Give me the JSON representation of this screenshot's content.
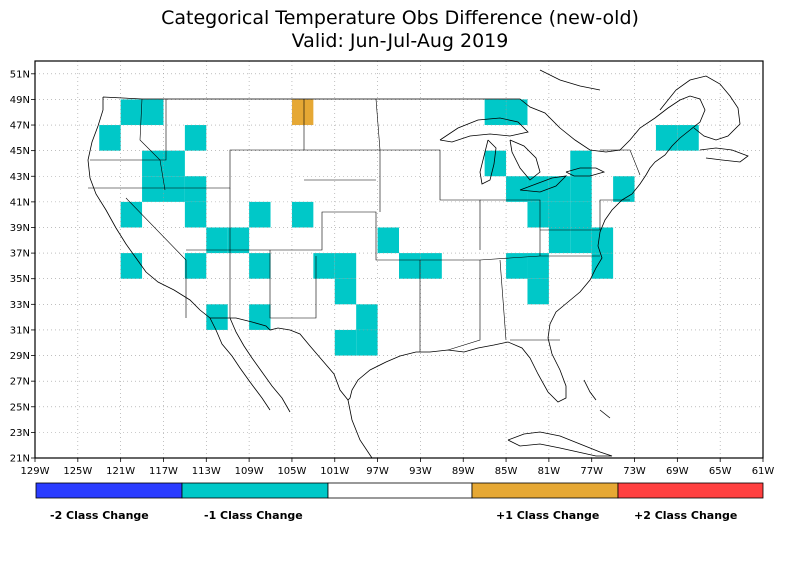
{
  "title": "Categorical Temperature Obs Difference (new-old)",
  "subtitle": "Valid: Jun-Jul-Aug 2019",
  "colors": {
    "minus2": "#2a3cff",
    "minus1": "#00c8c8",
    "zero": "#ffffff",
    "plus1": "#e6a834",
    "plus2": "#ff4040"
  },
  "axes": {
    "lon_min": -129,
    "lon_max": -61,
    "lat_min": 21,
    "lat_max": 52,
    "lon_tick_labels": [
      "129W",
      "125W",
      "121W",
      "117W",
      "113W",
      "109W",
      "105W",
      "101W",
      "97W",
      "93W",
      "89W",
      "85W",
      "81W",
      "77W",
      "73W",
      "69W",
      "65W",
      "61W"
    ],
    "lat_tick_labels": [
      "21N",
      "23N",
      "25N",
      "27N",
      "29N",
      "31N",
      "33N",
      "35N",
      "37N",
      "39N",
      "41N",
      "43N",
      "45N",
      "47N",
      "49N",
      "51N"
    ]
  },
  "legend": {
    "labels": [
      "-2 Class Change",
      "-1 Class Change",
      "+1 Class Change",
      "+2 Class Change"
    ]
  },
  "cells_minus1": [
    [
      -120,
      48
    ],
    [
      -118,
      48
    ],
    [
      -122,
      46
    ],
    [
      -114,
      46
    ],
    [
      -118,
      44
    ],
    [
      -116,
      44
    ],
    [
      -118,
      42
    ],
    [
      -116,
      42
    ],
    [
      -114,
      42
    ],
    [
      -114,
      40
    ],
    [
      -108,
      40
    ],
    [
      -104,
      40
    ],
    [
      -120,
      40
    ],
    [
      -112,
      38
    ],
    [
      -110,
      38
    ],
    [
      -96,
      38
    ],
    [
      -120,
      36
    ],
    [
      -114,
      36
    ],
    [
      -108,
      36
    ],
    [
      -102,
      36
    ],
    [
      -100,
      36
    ],
    [
      -94,
      36
    ],
    [
      -92,
      36
    ],
    [
      -100,
      34
    ],
    [
      -112,
      32
    ],
    [
      -108,
      32
    ],
    [
      -98,
      32
    ],
    [
      -100,
      30
    ],
    [
      -98,
      30
    ],
    [
      -86,
      48
    ],
    [
      -84,
      48
    ],
    [
      -86,
      44
    ],
    [
      -84,
      42
    ],
    [
      -82,
      42
    ],
    [
      -82,
      40
    ],
    [
      -80,
      42
    ],
    [
      -78,
      42
    ],
    [
      -80,
      40
    ],
    [
      -78,
      40
    ],
    [
      -78,
      44
    ],
    [
      -74,
      42
    ],
    [
      -80,
      38
    ],
    [
      -78,
      38
    ],
    [
      -76,
      38
    ],
    [
      -84,
      36
    ],
    [
      -82,
      36
    ],
    [
      -76,
      36
    ],
    [
      -82,
      34
    ],
    [
      -70,
      46
    ],
    [
      -68,
      46
    ]
  ],
  "cells_plus1": [
    [
      -104,
      48
    ]
  ]
}
